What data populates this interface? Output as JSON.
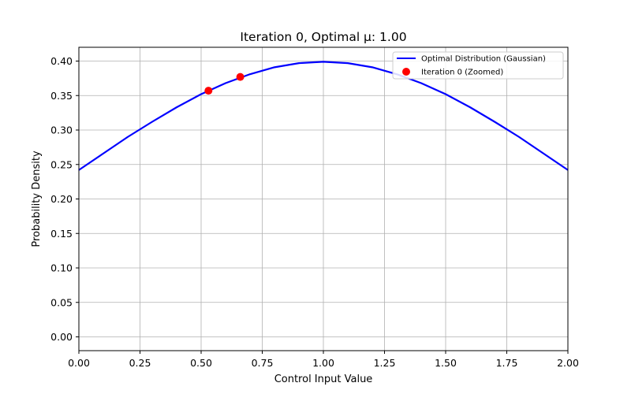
{
  "chart_data": {
    "type": "line",
    "title": "Iteration 0, Optimal μ: 1.00",
    "xlabel": "Control Input Value",
    "ylabel": "Probability Density",
    "xlim": [
      0,
      2
    ],
    "ylim": [
      -0.02,
      0.42
    ],
    "xticks": [
      0,
      0.25,
      0.5,
      0.75,
      1.0,
      1.25,
      1.5,
      1.75,
      2.0
    ],
    "xtick_labels": [
      "0.00",
      "0.25",
      "0.50",
      "0.75",
      "1.00",
      "1.25",
      "1.50",
      "1.75",
      "2.00"
    ],
    "yticks": [
      0,
      0.05,
      0.1,
      0.15,
      0.2,
      0.25,
      0.3,
      0.35,
      0.4
    ],
    "ytick_labels": [
      "0.00",
      "0.05",
      "0.10",
      "0.15",
      "0.20",
      "0.25",
      "0.30",
      "0.35",
      "0.40"
    ],
    "grid": true,
    "legend_position": "top-right",
    "series": [
      {
        "name": "Optimal Distribution (Gaussian)",
        "kind": "line",
        "color": "#0000ff",
        "x": [
          0.0,
          0.1,
          0.2,
          0.3,
          0.4,
          0.5,
          0.6,
          0.7,
          0.8,
          0.9,
          1.0,
          1.1,
          1.2,
          1.3,
          1.4,
          1.5,
          1.6,
          1.7,
          1.8,
          1.9,
          2.0
        ],
        "y": [
          0.242,
          0.266,
          0.29,
          0.312,
          0.333,
          0.352,
          0.368,
          0.381,
          0.391,
          0.397,
          0.399,
          0.397,
          0.391,
          0.381,
          0.368,
          0.352,
          0.333,
          0.312,
          0.29,
          0.266,
          0.242
        ]
      },
      {
        "name": "Iteration 0 (Zoomed)",
        "kind": "scatter",
        "color": "#ff0000",
        "x": [
          0.53,
          0.66
        ],
        "y": [
          0.357,
          0.377
        ]
      }
    ]
  }
}
